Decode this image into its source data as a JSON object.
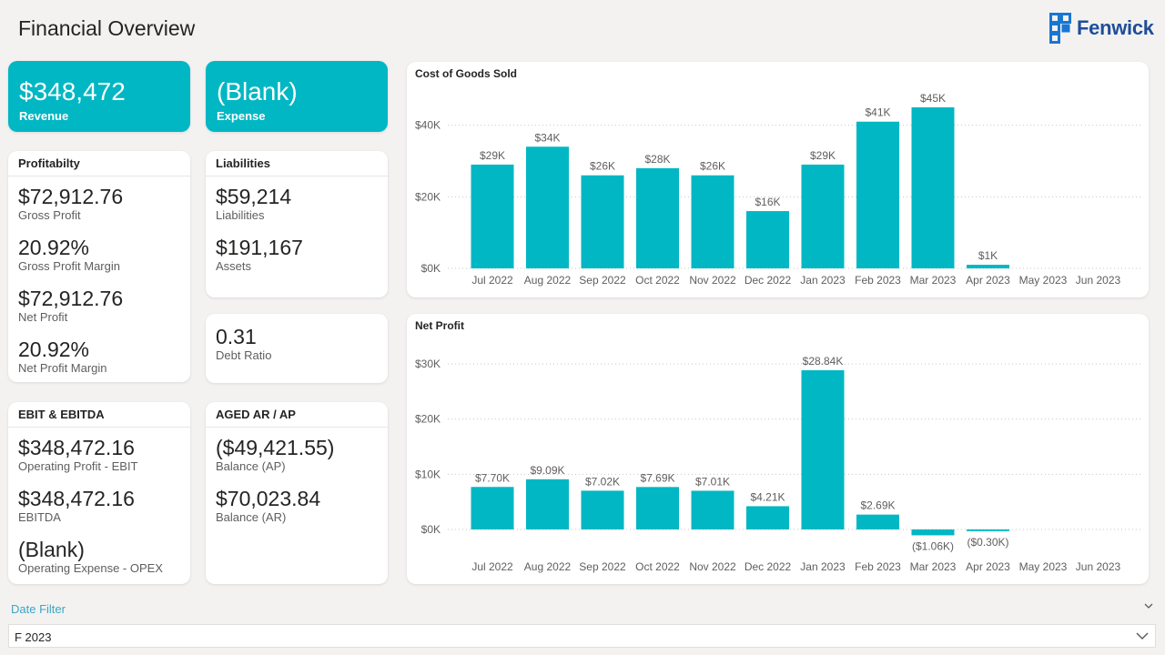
{
  "page": {
    "title": "Financial Overview"
  },
  "logo": {
    "text": "Fenwick",
    "color": "#1f4e99"
  },
  "kpis": {
    "revenue": {
      "value": "$348,472",
      "label": "Revenue"
    },
    "expense": {
      "value": "(Blank)",
      "label": "Expense"
    }
  },
  "profitability": {
    "title": "Profitabilty",
    "items": [
      {
        "value": "$72,912.76",
        "label": "Gross Profit"
      },
      {
        "value": "20.92%",
        "label": "Gross Profit Margin"
      },
      {
        "value": "$72,912.76",
        "label": "Net Profit"
      },
      {
        "value": "20.92%",
        "label": "Net Profit Margin"
      }
    ]
  },
  "liabilities": {
    "title": "Liabilities",
    "items": [
      {
        "value": "$59,214",
        "label": "Liabilities"
      },
      {
        "value": "$191,167",
        "label": "Assets"
      }
    ]
  },
  "debt_ratio": {
    "value": "0.31",
    "label": "Debt Ratio"
  },
  "ebit": {
    "title": "EBIT & EBITDA",
    "items": [
      {
        "value": "$348,472.16",
        "label": "Operating Profit - EBIT"
      },
      {
        "value": "$348,472.16",
        "label": "EBITDA"
      },
      {
        "value": "(Blank)",
        "label": "Operating Expense - OPEX"
      }
    ]
  },
  "aged": {
    "title": "AGED AR / AP",
    "items": [
      {
        "value": "($49,421.55)",
        "label": "Balance (AP)"
      },
      {
        "value": "$70,023.84",
        "label": "Balance (AR)"
      }
    ]
  },
  "filter": {
    "label": "Date Filter",
    "value": "F 2023"
  },
  "colors": {
    "accent": "#00b7c3",
    "background": "#f3f2f1",
    "filter_label": "#3aa6c4"
  },
  "chart_data": [
    {
      "type": "bar",
      "title": "Cost of Goods Sold",
      "categories": [
        "Jul 2022",
        "Aug 2022",
        "Sep 2022",
        "Oct 2022",
        "Nov 2022",
        "Dec 2022",
        "Jan 2023",
        "Feb 2023",
        "Mar 2023",
        "Apr 2023",
        "May 2023",
        "Jun 2023"
      ],
      "values": [
        29000,
        34000,
        26000,
        28000,
        26000,
        16000,
        29000,
        41000,
        45000,
        1000,
        null,
        null
      ],
      "data_labels": [
        "$29K",
        "$34K",
        "$26K",
        "$28K",
        "$26K",
        "$16K",
        "$29K",
        "$41K",
        "$45K",
        "$1K",
        "",
        ""
      ],
      "yticks": [
        0,
        20000,
        40000
      ],
      "ytick_labels": [
        "$0K",
        "$20K",
        "$40K"
      ],
      "ylim": [
        0,
        45000
      ],
      "grid": true,
      "color": "#00b7c3"
    },
    {
      "type": "bar",
      "title": "Net Profit",
      "categories": [
        "Jul 2022",
        "Aug 2022",
        "Sep 2022",
        "Oct 2022",
        "Nov 2022",
        "Dec 2022",
        "Jan 2023",
        "Feb 2023",
        "Mar 2023",
        "Apr 2023",
        "May 2023",
        "Jun 2023"
      ],
      "values": [
        7700,
        9090,
        7020,
        7690,
        7010,
        4210,
        28840,
        2690,
        -1060,
        -300,
        null,
        null
      ],
      "data_labels": [
        "$7.70K",
        "$9.09K",
        "$7.02K",
        "$7.69K",
        "$7.01K",
        "$4.21K",
        "$28.84K",
        "$2.69K",
        "($1.06K)",
        "($0.30K)",
        "",
        ""
      ],
      "yticks": [
        0,
        10000,
        20000,
        30000
      ],
      "ytick_labels": [
        "$0K",
        "$10K",
        "$20K",
        "$30K"
      ],
      "ylim": [
        -1060,
        28840
      ],
      "grid": true,
      "color": "#00b7c3"
    }
  ]
}
